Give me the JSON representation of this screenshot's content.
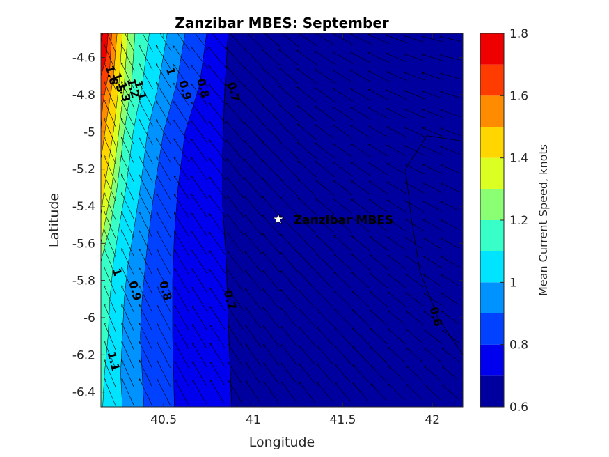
{
  "chart_data": {
    "type": "contour",
    "title": "Zanzibar MBES: September",
    "xlabel": "Longitude",
    "ylabel": "Latitude",
    "xlim": [
      40.15,
      42.17
    ],
    "ylim": [
      -6.48,
      -4.47
    ],
    "xticks": [
      40.5,
      41,
      41.5,
      42
    ],
    "xtick_labels": [
      "40.5",
      "41",
      "41.5",
      "42"
    ],
    "yticks": [
      -4.6,
      -4.8,
      -5,
      -5.2,
      -5.4,
      -5.6,
      -5.8,
      -6,
      -6.2,
      -6.4
    ],
    "ytick_labels": [
      "-4.6",
      "-4.8",
      "-5",
      "-5.2",
      "-5.4",
      "-5.6",
      "-5.8",
      "-6",
      "-6.2",
      "-6.4"
    ],
    "colorbar": {
      "label": "Mean Current Speed, knots",
      "levels": [
        0.6,
        0.7,
        0.8,
        0.9,
        1.0,
        1.1,
        1.2,
        1.3,
        1.4,
        1.5,
        1.6,
        1.7,
        1.8
      ],
      "colors": [
        "#00009f",
        "#0000ee",
        "#0042ff",
        "#0092ff",
        "#00e4ff",
        "#37ffc7",
        "#8aff74",
        "#dbff23",
        "#ffd600",
        "#ff8b00",
        "#ff3c00",
        "#ee0000",
        "#a80000"
      ],
      "ticks": [
        0.6,
        0.8,
        1.0,
        1.2,
        1.4,
        1.6,
        1.8
      ],
      "tick_labels": [
        "0.6",
        "0.8",
        "1",
        "1.2",
        "1.4",
        "1.6",
        "1.8"
      ]
    },
    "contour_labels": [
      {
        "text": "1.6",
        "lon": 40.19,
        "lat": -4.7
      },
      {
        "text": "1.5",
        "lon": 40.23,
        "lat": -4.74
      },
      {
        "text": "1.3",
        "lon": 40.26,
        "lat": -4.79
      },
      {
        "text": "1.2",
        "lon": 40.31,
        "lat": -4.77
      },
      {
        "text": "1.1",
        "lon": 40.35,
        "lat": -4.78
      },
      {
        "text": "1",
        "lon": 40.52,
        "lat": -4.68
      },
      {
        "text": "0.9",
        "lon": 40.6,
        "lat": -4.78
      },
      {
        "text": "0.8",
        "lon": 40.7,
        "lat": -4.77
      },
      {
        "text": "0.7",
        "lon": 40.87,
        "lat": -4.79
      },
      {
        "text": "1",
        "lon": 40.22,
        "lat": -5.76
      },
      {
        "text": "0.9",
        "lon": 40.32,
        "lat": -5.86
      },
      {
        "text": "0.8",
        "lon": 40.49,
        "lat": -5.86
      },
      {
        "text": "0.7",
        "lon": 40.85,
        "lat": -5.91
      },
      {
        "text": "0.6",
        "lon": 42.0,
        "lat": -6.0
      },
      {
        "text": "1.1",
        "lon": 40.2,
        "lat": -6.24
      }
    ],
    "annotation": {
      "text": "Zanzibar MBES",
      "lon": 41.14,
      "lat": -5.47
    },
    "contour_lines": [
      {
        "level": 0.7,
        "points": [
          [
            40.86,
            -4.47
          ],
          [
            40.84,
            -4.8
          ],
          [
            40.83,
            -5.1
          ],
          [
            40.83,
            -5.4
          ],
          [
            40.85,
            -5.7
          ],
          [
            40.86,
            -6.0
          ],
          [
            40.88,
            -6.48
          ]
        ]
      },
      {
        "level": 0.6,
        "points": [
          [
            42.17,
            -5.05
          ],
          [
            41.97,
            -5.02
          ],
          [
            41.85,
            -5.2
          ],
          [
            41.88,
            -5.45
          ],
          [
            41.93,
            -5.75
          ],
          [
            42.03,
            -6.0
          ],
          [
            42.17,
            -6.2
          ]
        ]
      }
    ],
    "speed_field_bands": [
      {
        "level": 1.8,
        "edge": [
          [
            40.15,
            -4.47
          ],
          [
            40.16,
            -4.47
          ],
          [
            40.15,
            -4.52
          ]
        ]
      },
      {
        "level": 1.7,
        "edge": [
          [
            40.15,
            -4.47
          ],
          [
            40.19,
            -4.47
          ],
          [
            40.18,
            -4.6
          ],
          [
            40.15,
            -4.7
          ]
        ]
      },
      {
        "level": 1.6,
        "edge": [
          [
            40.15,
            -4.47
          ],
          [
            40.21,
            -4.47
          ],
          [
            40.2,
            -4.65
          ],
          [
            40.16,
            -4.85
          ],
          [
            40.15,
            -5.0
          ]
        ]
      },
      {
        "level": 1.5,
        "edge": [
          [
            40.15,
            -4.47
          ],
          [
            40.24,
            -4.47
          ],
          [
            40.22,
            -4.7
          ],
          [
            40.18,
            -4.95
          ],
          [
            40.15,
            -5.15
          ]
        ]
      },
      {
        "level": 1.4,
        "edge": [
          [
            40.15,
            -4.47
          ],
          [
            40.27,
            -4.47
          ],
          [
            40.25,
            -4.75
          ],
          [
            40.22,
            -5.0
          ],
          [
            40.17,
            -5.3
          ],
          [
            40.15,
            -5.45
          ]
        ]
      },
      {
        "level": 1.3,
        "edge": [
          [
            40.15,
            -4.47
          ],
          [
            40.3,
            -4.47
          ],
          [
            40.28,
            -4.75
          ],
          [
            40.25,
            -5.0
          ],
          [
            40.21,
            -5.3
          ],
          [
            40.17,
            -5.5
          ],
          [
            40.15,
            -5.6
          ]
        ]
      },
      {
        "level": 1.2,
        "edge": [
          [
            40.15,
            -4.47
          ],
          [
            40.34,
            -4.47
          ],
          [
            40.32,
            -4.75
          ],
          [
            40.28,
            -5.0
          ],
          [
            40.24,
            -5.3
          ],
          [
            40.2,
            -5.52
          ],
          [
            40.17,
            -5.62
          ],
          [
            40.15,
            -5.7
          ]
        ]
      },
      {
        "level": 1.1,
        "edge": [
          [
            40.15,
            -4.47
          ],
          [
            40.42,
            -4.47
          ],
          [
            40.38,
            -4.75
          ],
          [
            40.33,
            -5.0
          ],
          [
            40.29,
            -5.3
          ],
          [
            40.25,
            -5.52
          ],
          [
            40.22,
            -5.7
          ],
          [
            40.2,
            -5.9
          ],
          [
            40.19,
            -6.1
          ],
          [
            40.17,
            -6.3
          ],
          [
            40.16,
            -6.48
          ],
          [
            40.15,
            -6.48
          ]
        ]
      },
      {
        "level": 1.0,
        "edge": [
          [
            40.15,
            -4.47
          ],
          [
            40.52,
            -4.47
          ],
          [
            40.47,
            -4.75
          ],
          [
            40.41,
            -5.0
          ],
          [
            40.37,
            -5.3
          ],
          [
            40.33,
            -5.55
          ],
          [
            40.3,
            -5.72
          ],
          [
            40.28,
            -5.9
          ],
          [
            40.27,
            -6.1
          ],
          [
            40.26,
            -6.3
          ],
          [
            40.27,
            -6.48
          ],
          [
            40.15,
            -6.48
          ]
        ]
      },
      {
        "level": 0.9,
        "edge": [
          [
            40.15,
            -4.47
          ],
          [
            40.62,
            -4.47
          ],
          [
            40.57,
            -4.75
          ],
          [
            40.5,
            -5.0
          ],
          [
            40.45,
            -5.3
          ],
          [
            40.41,
            -5.6
          ],
          [
            40.38,
            -5.9
          ],
          [
            40.37,
            -6.1
          ],
          [
            40.38,
            -6.3
          ],
          [
            40.39,
            -6.48
          ],
          [
            40.15,
            -6.48
          ]
        ]
      },
      {
        "level": 0.8,
        "edge": [
          [
            40.15,
            -4.47
          ],
          [
            40.74,
            -4.47
          ],
          [
            40.7,
            -4.75
          ],
          [
            40.62,
            -5.0
          ],
          [
            40.58,
            -5.3
          ],
          [
            40.56,
            -5.55
          ],
          [
            40.55,
            -5.8
          ],
          [
            40.55,
            -6.1
          ],
          [
            40.56,
            -6.48
          ],
          [
            40.15,
            -6.48
          ]
        ]
      },
      {
        "level": 0.7,
        "edge": [
          [
            40.15,
            -4.47
          ],
          [
            40.86,
            -4.47
          ],
          [
            40.84,
            -4.8
          ],
          [
            40.83,
            -5.1
          ],
          [
            40.83,
            -5.4
          ],
          [
            40.85,
            -5.7
          ],
          [
            40.86,
            -6.0
          ],
          [
            40.88,
            -6.48
          ],
          [
            40.15,
            -6.48
          ]
        ]
      }
    ],
    "quiver": {
      "lon_step": 0.1,
      "lat_step": 0.1,
      "scale_note": "uniform-length arrows; direction varies from NNW near the west coast to W in the northeast"
    },
    "grid": false
  }
}
